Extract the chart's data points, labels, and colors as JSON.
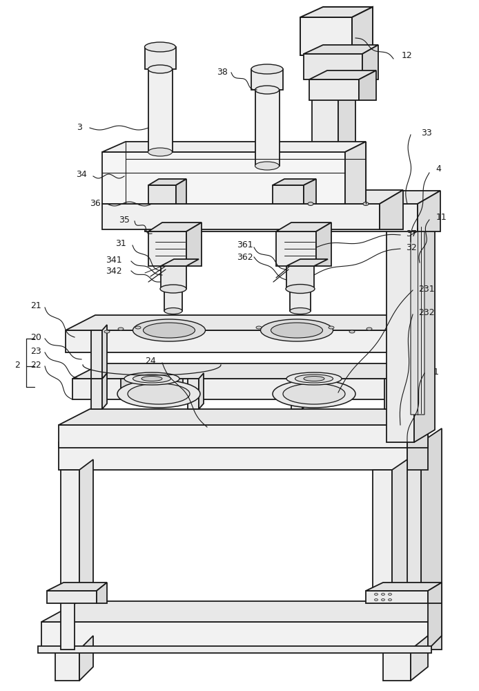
{
  "bg_color": "#ffffff",
  "lc": "#1a1a1a",
  "lw": 1.3,
  "tlw": 0.8,
  "fig_width": 6.94,
  "fig_height": 10.0,
  "dpi": 100
}
